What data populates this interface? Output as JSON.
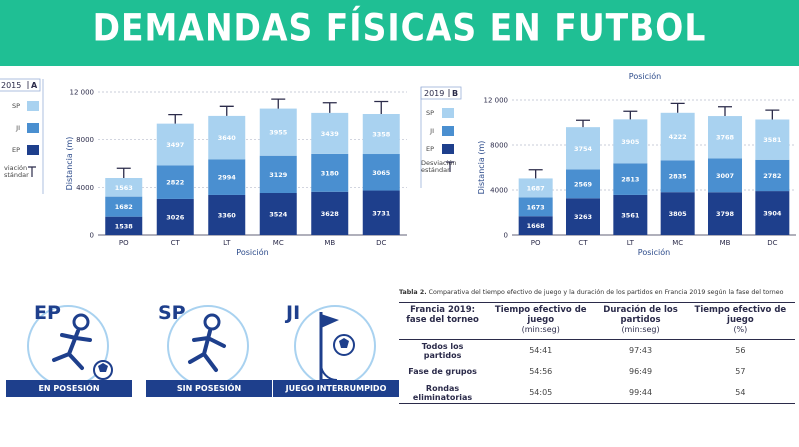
{
  "banner": {
    "title": "DEMANDAS FÍSICAS EN FUTBOL"
  },
  "colors": {
    "banner": "#1fbf94",
    "sp": "#a9d2f0",
    "ji": "#4a8fd0",
    "ep": "#1e3f8c",
    "axis_label": "#2b4a8a"
  },
  "chart_data": [
    {
      "type": "bar",
      "stacked": true,
      "panel_year": "2015",
      "panel_letter": "A",
      "categories": [
        "PO",
        "CT",
        "LT",
        "MC",
        "MB",
        "DC"
      ],
      "series": [
        {
          "name": "EP",
          "values": [
            1538,
            3026,
            3360,
            3524,
            3628,
            3731
          ]
        },
        {
          "name": "JI",
          "values": [
            1682,
            2822,
            2994,
            3129,
            3180,
            3065
          ]
        },
        {
          "name": "SP",
          "values": [
            1563,
            3497,
            3640,
            3955,
            3439,
            3358
          ]
        }
      ],
      "error_bar_tops": [
        5600,
        10100,
        10800,
        11400,
        11100,
        11200
      ],
      "ylabel": "Distancia (m)",
      "xlabel": "Posición",
      "ylim": [
        0,
        12000
      ],
      "yticks": [
        0,
        4000,
        8000,
        12000
      ],
      "ytick_labels": [
        "0",
        "4000",
        "8000",
        "12 000"
      ],
      "grid": true,
      "legend": {
        "placement": "left",
        "entries": [
          "SP",
          "JI",
          "EP"
        ],
        "error_label_lines": [
          "Desviación",
          "estándar"
        ],
        "error_label_visible_lines": [
          "viación",
          "stándar"
        ]
      }
    },
    {
      "type": "bar",
      "stacked": true,
      "panel_year": "2019",
      "panel_letter": "B",
      "top_label": "Posición",
      "categories": [
        "PO",
        "CT",
        "LT",
        "MC",
        "MB",
        "DC"
      ],
      "series": [
        {
          "name": "EP",
          "values": [
            1668,
            3263,
            3561,
            3805,
            3798,
            3904
          ]
        },
        {
          "name": "JI",
          "values": [
            1673,
            2569,
            2813,
            2835,
            3007,
            2782
          ]
        },
        {
          "name": "SP",
          "values": [
            1687,
            3754,
            3905,
            4222,
            3768,
            3581
          ]
        }
      ],
      "error_bar_tops": [
        5800,
        10200,
        11000,
        11700,
        11400,
        11100
      ],
      "ylabel": "Distancia (m)",
      "xlabel": "Posición",
      "ylim": [
        0,
        12000
      ],
      "yticks": [
        0,
        4000,
        8000,
        12000
      ],
      "ytick_labels": [
        "0",
        "4000",
        "8000",
        "12 000"
      ],
      "grid": true,
      "legend": {
        "placement": "left",
        "entries": [
          "SP",
          "JI",
          "EP"
        ],
        "error_label_lines": [
          "Desviación",
          "estándar"
        ]
      }
    }
  ],
  "icons": [
    {
      "code": "EP",
      "label": "EN POSESIÓN",
      "icon": "player-with-ball-icon"
    },
    {
      "code": "SP",
      "label": "SIN POSESIÓN",
      "icon": "player-running-icon"
    },
    {
      "code": "JI",
      "label": "JUEGO INTERRUMPIDO",
      "icon": "corner-flag-ball-icon"
    }
  ],
  "table": {
    "caption_bold": "Tabla 2.",
    "caption_text": "Comparativa del tiempo efectivo de juego y la duración de los partidos en Francia 2019 según la fase del torneo",
    "headers": [
      {
        "label": "Francia 2019:\nfase del torneo",
        "unit": ""
      },
      {
        "label": "Tiempo efectivo de\njuego",
        "unit": "(min:seg)"
      },
      {
        "label": "Duración de los\npartidos",
        "unit": "(min:seg)"
      },
      {
        "label": "Tiempo efectivo de\njuego",
        "unit": "(%)"
      }
    ],
    "rows": [
      [
        "Todos los partidos",
        "54:41",
        "97:43",
        "56"
      ],
      [
        "Fase de grupos",
        "54:56",
        "96:49",
        "57"
      ],
      [
        "Rondas eliminatorias",
        "54:05",
        "99:44",
        "54"
      ]
    ]
  }
}
